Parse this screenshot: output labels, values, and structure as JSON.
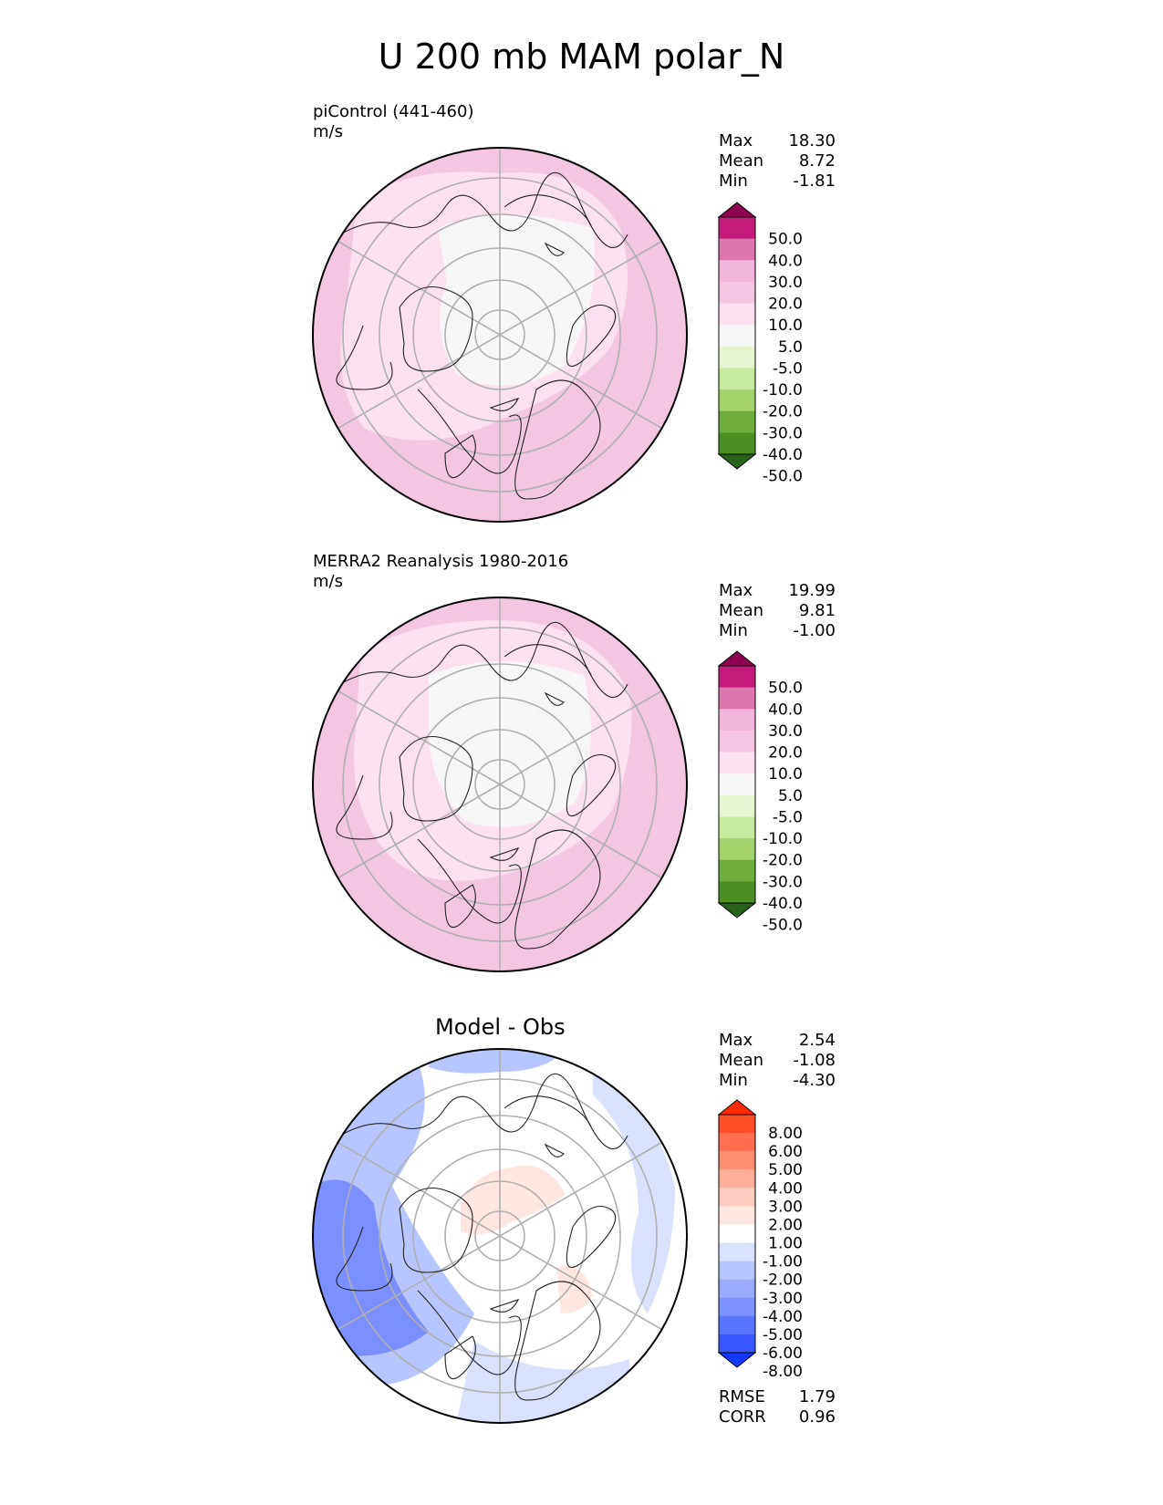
{
  "title": "U 200 mb MAM polar_N",
  "panels": [
    {
      "label": "piControl (441-460)",
      "units": "m/s",
      "stats": [
        {
          "name": "Max",
          "value": "18.30"
        },
        {
          "name": "Mean",
          "value": "8.72"
        },
        {
          "name": "Min",
          "value": "-1.81"
        }
      ],
      "colorbar": {
        "tick_labels": [
          "50.0",
          "40.0",
          "30.0",
          "20.0",
          "10.0",
          "5.0",
          "-5.0",
          "-10.0",
          "-20.0",
          "-30.0",
          "-40.0",
          "-50.0"
        ],
        "colors": [
          "#8e0152",
          "#c51b7d",
          "#de77ae",
          "#f1b6da",
          "#f5c6e2",
          "#fde0ef",
          "#f7f7f7",
          "#e6f5d0",
          "#c7e9a0",
          "#a2d46b",
          "#6fae3a",
          "#4d8f22",
          "#276419"
        ]
      }
    },
    {
      "label": "MERRA2 Reanalysis 1980-2016",
      "units": "m/s",
      "stats": [
        {
          "name": "Max",
          "value": "19.99"
        },
        {
          "name": "Mean",
          "value": "9.81"
        },
        {
          "name": "Min",
          "value": "-1.00"
        }
      ],
      "colorbar": {
        "tick_labels": [
          "50.0",
          "40.0",
          "30.0",
          "20.0",
          "10.0",
          "5.0",
          "-5.0",
          "-10.0",
          "-20.0",
          "-30.0",
          "-40.0",
          "-50.0"
        ],
        "colors": [
          "#8e0152",
          "#c51b7d",
          "#de77ae",
          "#f1b6da",
          "#f5c6e2",
          "#fde0ef",
          "#f7f7f7",
          "#e6f5d0",
          "#c7e9a0",
          "#a2d46b",
          "#6fae3a",
          "#4d8f22",
          "#276419"
        ]
      }
    },
    {
      "title": "Model - Obs",
      "stats": [
        {
          "name": "Max",
          "value": "2.54"
        },
        {
          "name": "Mean",
          "value": "-1.08"
        },
        {
          "name": "Min",
          "value": "-4.30"
        }
      ],
      "extra_stats": [
        {
          "name": "RMSE",
          "value": "1.79"
        },
        {
          "name": "CORR",
          "value": "0.96"
        }
      ],
      "colorbar": {
        "tick_labels": [
          "8.00",
          "6.00",
          "5.00",
          "4.00",
          "3.00",
          "2.00",
          "1.00",
          "-1.00",
          "-2.00",
          "-3.00",
          "-4.00",
          "-5.00",
          "-6.00",
          "-8.00"
        ],
        "colors": [
          "#ff2a00",
          "#ff4d26",
          "#ff6e4d",
          "#ff8f73",
          "#ffaf99",
          "#ffcdc0",
          "#ffe6e0",
          "#ffffff",
          "#d9e1ff",
          "#b8c6ff",
          "#99abff",
          "#7a90ff",
          "#5974ff",
          "#3a57ff",
          "#1438ff"
        ]
      }
    }
  ]
}
